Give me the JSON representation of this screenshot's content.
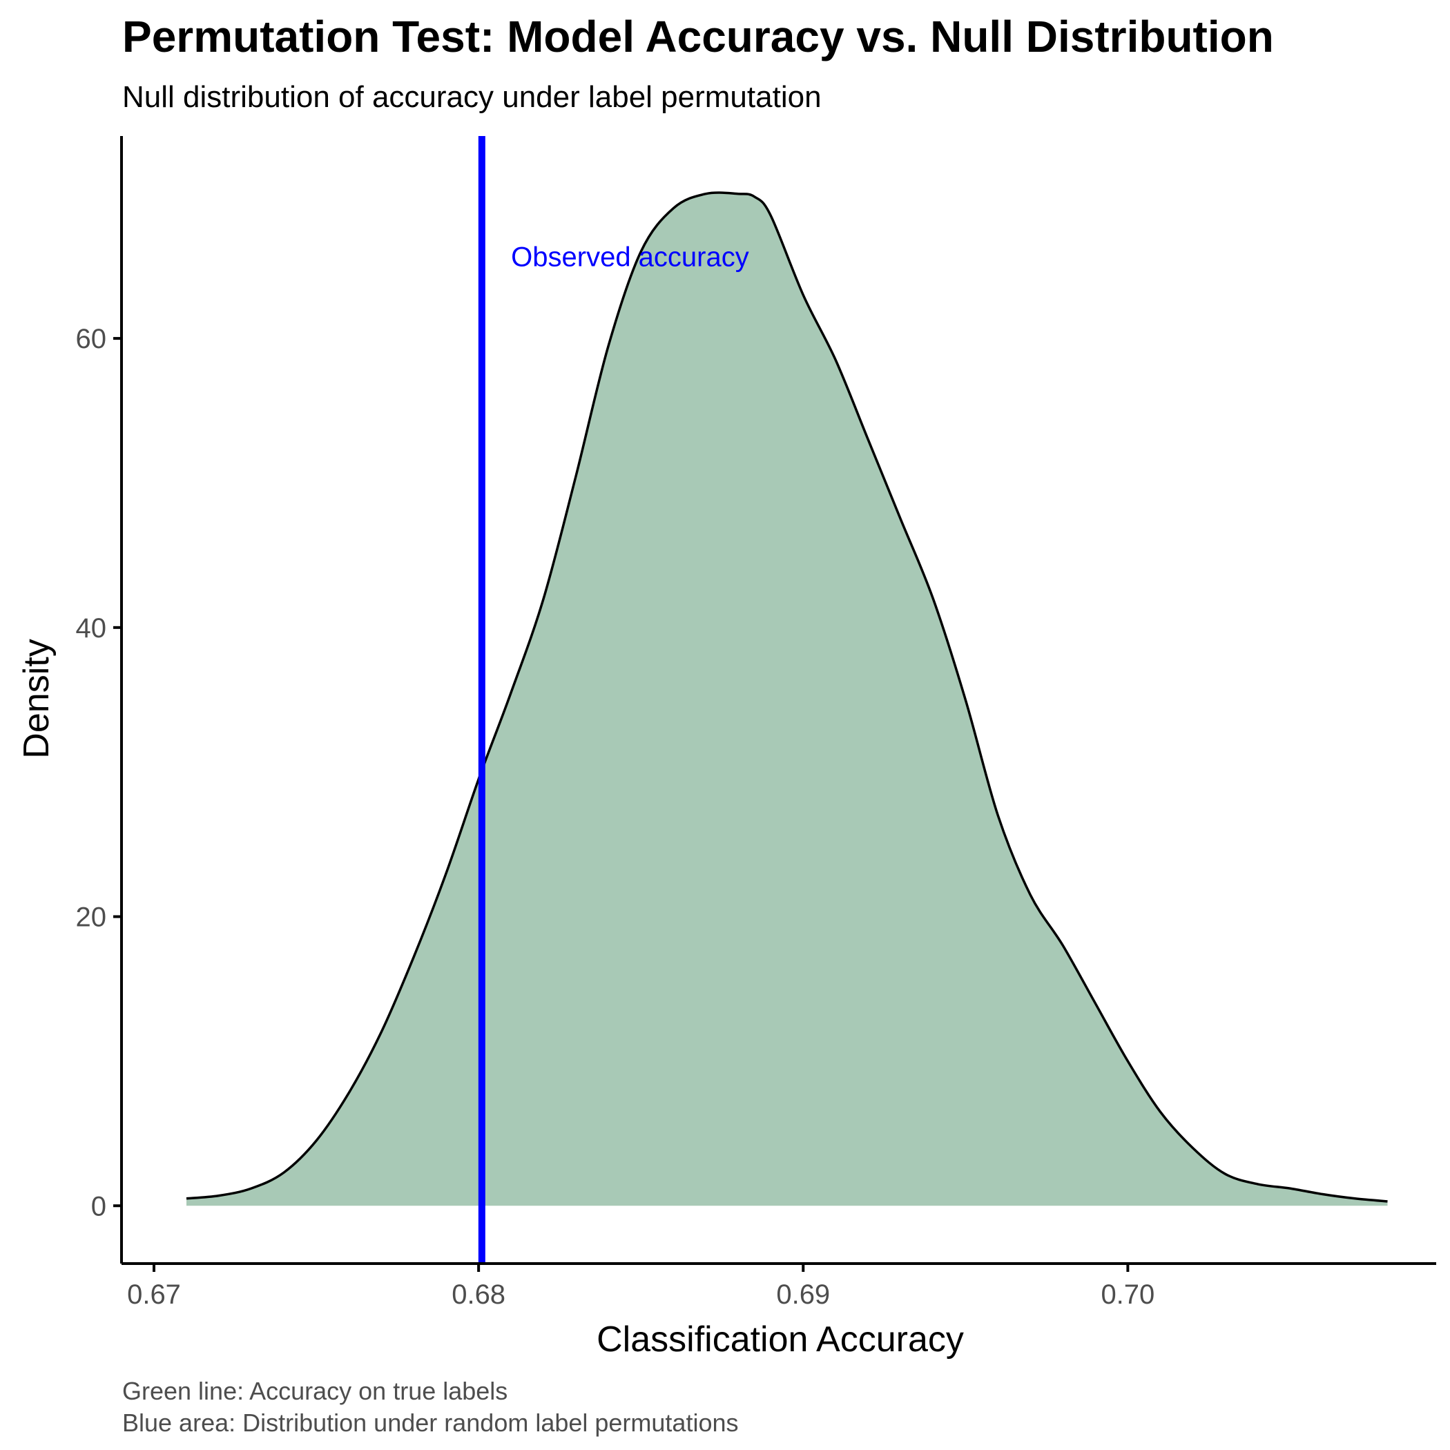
{
  "chart_data": {
    "type": "area",
    "title": "Permutation Test: Model Accuracy vs. Null Distribution",
    "subtitle": "Null distribution of accuracy under label permutation",
    "xlabel": "Classification Accuracy",
    "ylabel": "Density",
    "caption_lines": [
      "Green line: Accuracy on true labels",
      "Blue area: Distribution under random label permutations"
    ],
    "xlim": [
      0.669,
      0.7095
    ],
    "ylim": [
      -4.0,
      74.0
    ],
    "x_ticks": [
      0.67,
      0.68,
      0.69,
      0.7
    ],
    "x_tick_labels": [
      "0.67",
      "0.68",
      "0.69",
      "0.70"
    ],
    "y_ticks": [
      0,
      20,
      40,
      60
    ],
    "y_tick_labels": [
      "0",
      "20",
      "40",
      "60"
    ],
    "grid": false,
    "fill_color": "#a8c9b6",
    "line_color": "#000000",
    "density": {
      "x": [
        0.671,
        0.672,
        0.673,
        0.674,
        0.675,
        0.676,
        0.677,
        0.678,
        0.679,
        0.68,
        0.681,
        0.682,
        0.683,
        0.684,
        0.685,
        0.686,
        0.687,
        0.688,
        0.6885,
        0.689,
        0.69,
        0.691,
        0.692,
        0.693,
        0.694,
        0.695,
        0.696,
        0.697,
        0.698,
        0.699,
        0.7,
        0.701,
        0.702,
        0.703,
        0.704,
        0.705,
        0.706,
        0.707,
        0.708
      ],
      "y": [
        0.5,
        0.7,
        1.2,
        2.3,
        4.5,
        7.8,
        12.0,
        17.2,
        23.0,
        29.5,
        35.5,
        42.0,
        50.5,
        59.5,
        66.0,
        69.0,
        70.0,
        70.0,
        69.8,
        68.5,
        63.0,
        58.5,
        53.0,
        47.5,
        42.0,
        35.0,
        27.0,
        21.5,
        18.0,
        14.0,
        10.0,
        6.5,
        4.0,
        2.2,
        1.5,
        1.2,
        0.8,
        0.5,
        0.3
      ]
    },
    "observed": {
      "value": 0.6801,
      "label": "Observed accuracy",
      "label_x": 0.681,
      "label_y": 65,
      "color": "#0000ff"
    }
  }
}
